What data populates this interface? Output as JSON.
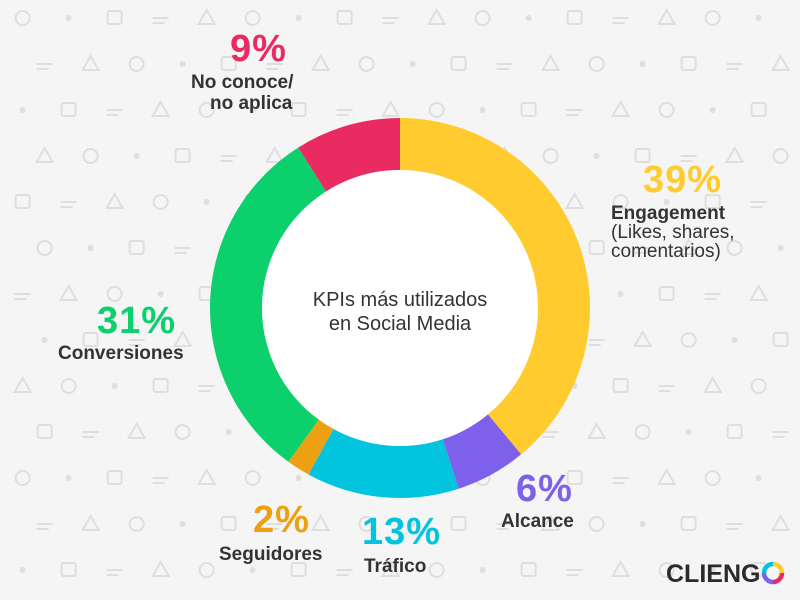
{
  "chart_data": {
    "type": "pie",
    "title": "KPIs más utilizados en Social Media",
    "title_lines": [
      "KPIs más utilizados",
      "en Social Media"
    ],
    "slices": [
      {
        "key": "engagement",
        "value": 39,
        "percent_label": "39%",
        "label_lines": [
          "Engagement"
        ],
        "sub_lines": [
          "(Likes, shares,",
          "comentarios)"
        ],
        "color": "#ffcb2f"
      },
      {
        "key": "alcance",
        "value": 6,
        "percent_label": "6%",
        "label_lines": [
          "Alcance"
        ],
        "sub_lines": [],
        "color": "#7d61ea"
      },
      {
        "key": "trafico",
        "value": 13,
        "percent_label": "13%",
        "label_lines": [
          "Tráfico"
        ],
        "sub_lines": [],
        "color": "#02c4df"
      },
      {
        "key": "seguidores",
        "value": 2,
        "percent_label": "2%",
        "label_lines": [
          "Seguidores"
        ],
        "sub_lines": [],
        "color": "#eda012"
      },
      {
        "key": "conversiones",
        "value": 31,
        "percent_label": "31%",
        "label_lines": [
          "Conversiones"
        ],
        "sub_lines": [],
        "color": "#0cd06b"
      },
      {
        "key": "no-conoce",
        "value": 9,
        "percent_label": "9%",
        "label_lines": [
          "No conoce/",
          "no aplica"
        ],
        "sub_lines": [],
        "color": "#ea2b62"
      }
    ],
    "legend": "none"
  },
  "brand": {
    "logo_text": "CLIENG",
    "logo_o_colors": [
      "#ffcb2f",
      "#ea2b62",
      "#7d61ea",
      "#02c4df"
    ]
  },
  "background": {
    "color": "#f5f5f5",
    "pattern_color": "#dedede"
  }
}
